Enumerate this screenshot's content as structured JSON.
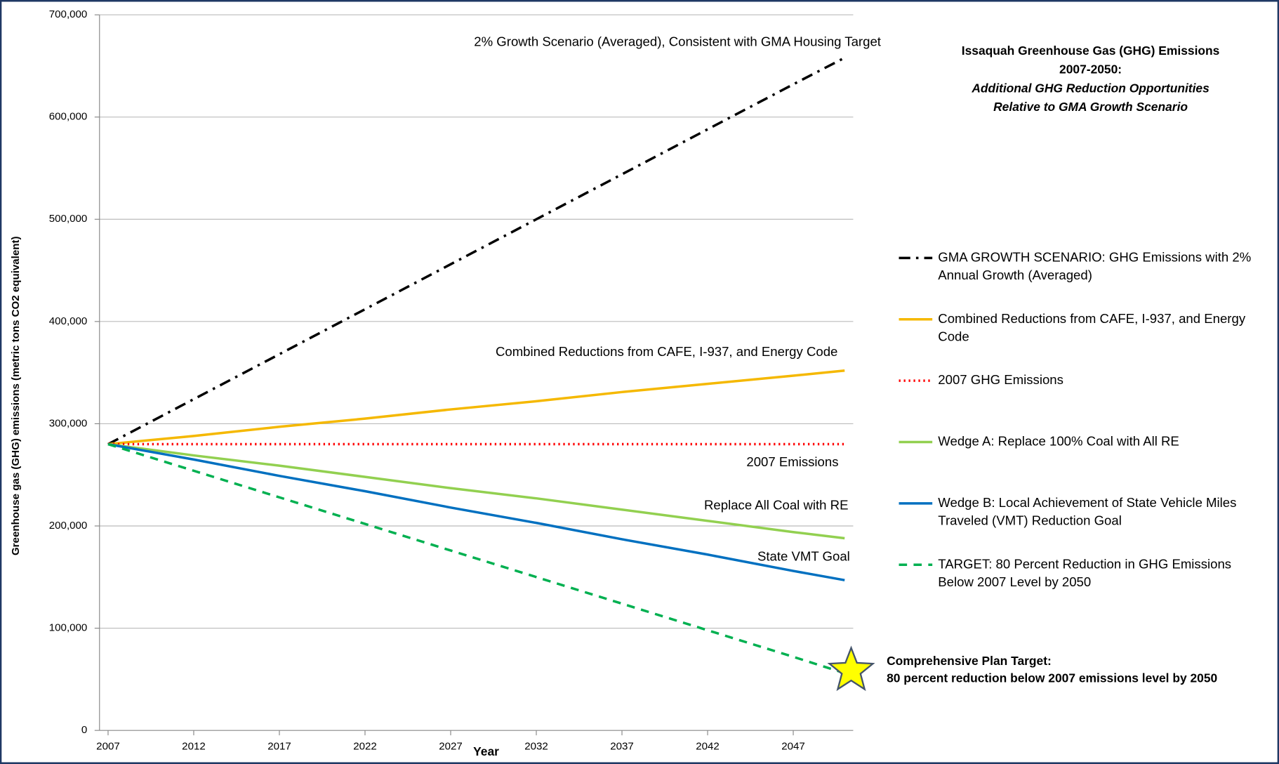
{
  "chart_data": {
    "type": "line",
    "title": [
      "Issaquah Greenhouse Gas (GHG) Emissions",
      "2007-2050:"
    ],
    "subtitle": [
      "Additional GHG Reduction Opportunities",
      "Relative to  GMA Growth Scenario"
    ],
    "x_label": "Year",
    "y_label": "Greenhouse gas (GHG) emissions (metric tons CO2 equivalent)",
    "x": [
      2007,
      2012,
      2017,
      2022,
      2027,
      2032,
      2037,
      2042,
      2047,
      2050
    ],
    "series": [
      {
        "name": "GMA GROWTH SCENARIO: GHG Emissions with 2% Annual Growth (Averaged)",
        "color": "#000000",
        "dash": "dash-dot",
        "values": [
          280000,
          324000,
          368000,
          412000,
          456000,
          500000,
          544000,
          588000,
          632000,
          658000
        ]
      },
      {
        "name": "Combined Reductions from CAFE, I-937, and Energy Code",
        "color": "#f5b800",
        "dash": "solid",
        "values": [
          280000,
          288000,
          297000,
          305000,
          314000,
          322000,
          331000,
          339000,
          347000,
          352000
        ]
      },
      {
        "name": "2007 GHG Emissions",
        "color": "#ff0000",
        "dash": "dotted",
        "values": [
          280000,
          280000,
          280000,
          280000,
          280000,
          280000,
          280000,
          280000,
          280000,
          280000
        ]
      },
      {
        "name": "Wedge A: Replace 100% Coal with All RE",
        "color": "#92d050",
        "dash": "solid",
        "values": [
          280000,
          269000,
          259000,
          248000,
          237000,
          227000,
          216000,
          205000,
          194000,
          188000
        ]
      },
      {
        "name": "Wedge B: Local Achievement of State Vehicle Miles Traveled (VMT) Reduction Goal",
        "color": "#0070c0",
        "dash": "solid",
        "values": [
          280000,
          265000,
          249000,
          234000,
          218000,
          203000,
          187000,
          172000,
          156000,
          147000
        ]
      },
      {
        "name": "TARGET: 80 Percent Reduction in GHG Emissions Below 2007 Level by 2050",
        "color": "#00b050",
        "dash": "dashed",
        "values": [
          280000,
          254000,
          228000,
          202000,
          176000,
          150000,
          124000,
          98000,
          72000,
          56000
        ]
      }
    ],
    "annotations": [
      "2% Growth Scenario (Averaged), Consistent with GMA Housing Target",
      "Combined Reductions from CAFE, I-937, and Energy Code",
      "2007 Emissions",
      "Replace All  Coal with RE",
      "State VMT Goal",
      "Comprehensive Plan Target:",
      "80 percent reduction below 2007 emissions level by 2050"
    ],
    "xlim": [
      2006.5,
      2050.5
    ],
    "xticks": [
      2007,
      2012,
      2017,
      2022,
      2027,
      2032,
      2037,
      2042,
      2047
    ],
    "ylim": [
      0,
      700000
    ],
    "yticks": [
      0,
      {
        "value": 100000,
        "label": "100,000"
      },
      {
        "value": 200000,
        "label": "200,000"
      },
      {
        "value": 300000,
        "label": "300,000"
      },
      {
        "value": 400000,
        "label": "400,000"
      },
      {
        "value": 500000,
        "label": "500,000"
      },
      {
        "value": 600000,
        "label": "600,000"
      },
      {
        "value": 700000,
        "label": "700,000"
      }
    ],
    "grid": true,
    "legend": "right"
  }
}
